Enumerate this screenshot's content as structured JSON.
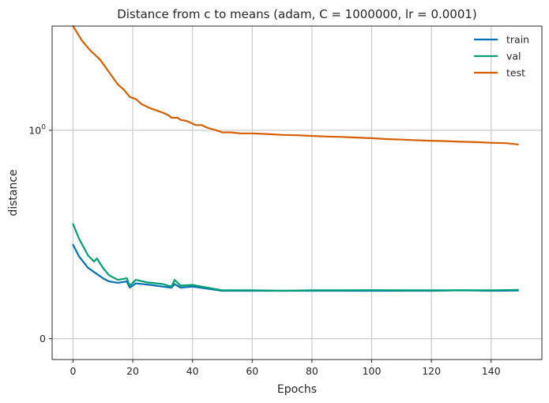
{
  "chart_data": {
    "type": "line",
    "title": "Distance from c to means (adam, C = 1000000, lr = 0.0001)",
    "xlabel": "Epochs",
    "ylabel": "distance",
    "xlim": [
      -7,
      157
    ],
    "ylim": [
      -0.1,
      1.5
    ],
    "yscale": "symlog",
    "grid": true,
    "legend_position": "top-right",
    "x_ticks": [
      0,
      20,
      40,
      60,
      80,
      100,
      120,
      140
    ],
    "y_ticks": [
      {
        "value": 0,
        "label": "0"
      },
      {
        "value": 1,
        "label": "10",
        "sup": "0"
      }
    ],
    "series": [
      {
        "name": "train",
        "color": "#0072b2",
        "points": [
          [
            0,
            0.45
          ],
          [
            2,
            0.395
          ],
          [
            5,
            0.34
          ],
          [
            7,
            0.32
          ],
          [
            10,
            0.29
          ],
          [
            12,
            0.275
          ],
          [
            15,
            0.268
          ],
          [
            18,
            0.275
          ],
          [
            19,
            0.245
          ],
          [
            21,
            0.265
          ],
          [
            25,
            0.26
          ],
          [
            30,
            0.25
          ],
          [
            33,
            0.245
          ],
          [
            34,
            0.262
          ],
          [
            36,
            0.245
          ],
          [
            40,
            0.25
          ],
          [
            45,
            0.24
          ],
          [
            50,
            0.23
          ],
          [
            60,
            0.23
          ],
          [
            70,
            0.23
          ],
          [
            80,
            0.23
          ],
          [
            90,
            0.23
          ],
          [
            100,
            0.23
          ],
          [
            110,
            0.23
          ],
          [
            120,
            0.23
          ],
          [
            130,
            0.232
          ],
          [
            140,
            0.23
          ],
          [
            149,
            0.231
          ]
        ]
      },
      {
        "name": "val",
        "color": "#009e73",
        "points": [
          [
            0,
            0.55
          ],
          [
            2,
            0.48
          ],
          [
            5,
            0.4
          ],
          [
            7,
            0.37
          ],
          [
            8,
            0.385
          ],
          [
            10,
            0.34
          ],
          [
            12,
            0.305
          ],
          [
            15,
            0.282
          ],
          [
            18,
            0.29
          ],
          [
            19,
            0.255
          ],
          [
            21,
            0.282
          ],
          [
            25,
            0.27
          ],
          [
            30,
            0.262
          ],
          [
            33,
            0.25
          ],
          [
            34,
            0.282
          ],
          [
            36,
            0.255
          ],
          [
            40,
            0.258
          ],
          [
            45,
            0.245
          ],
          [
            50,
            0.232
          ],
          [
            60,
            0.232
          ],
          [
            70,
            0.23
          ],
          [
            80,
            0.232
          ],
          [
            90,
            0.232
          ],
          [
            100,
            0.233
          ],
          [
            110,
            0.232
          ],
          [
            120,
            0.232
          ],
          [
            130,
            0.232
          ],
          [
            140,
            0.232
          ],
          [
            149,
            0.234
          ]
        ]
      },
      {
        "name": "test",
        "color": "#d55e00",
        "points": [
          [
            0,
            1.5
          ],
          [
            3,
            1.43
          ],
          [
            6,
            1.38
          ],
          [
            9,
            1.34
          ],
          [
            12,
            1.28
          ],
          [
            15,
            1.22
          ],
          [
            17,
            1.195
          ],
          [
            19,
            1.16
          ],
          [
            21,
            1.15
          ],
          [
            23,
            1.125
          ],
          [
            26,
            1.105
          ],
          [
            28,
            1.095
          ],
          [
            30,
            1.085
          ],
          [
            32,
            1.072
          ],
          [
            33,
            1.06
          ],
          [
            35,
            1.06
          ],
          [
            36,
            1.05
          ],
          [
            38,
            1.045
          ],
          [
            40,
            1.032
          ],
          [
            41,
            1.025
          ],
          [
            43,
            1.025
          ],
          [
            45,
            1.012
          ],
          [
            48,
            1.0
          ],
          [
            50,
            0.99
          ],
          [
            53,
            0.99
          ],
          [
            56,
            0.985
          ],
          [
            60,
            0.985
          ],
          [
            65,
            0.982
          ],
          [
            70,
            0.978
          ],
          [
            75,
            0.976
          ],
          [
            80,
            0.973
          ],
          [
            85,
            0.97
          ],
          [
            90,
            0.968
          ],
          [
            95,
            0.965
          ],
          [
            100,
            0.962
          ],
          [
            105,
            0.958
          ],
          [
            110,
            0.955
          ],
          [
            115,
            0.952
          ],
          [
            120,
            0.95
          ],
          [
            125,
            0.948
          ],
          [
            130,
            0.945
          ],
          [
            135,
            0.943
          ],
          [
            140,
            0.94
          ],
          [
            145,
            0.938
          ],
          [
            149,
            0.932
          ]
        ]
      }
    ]
  }
}
